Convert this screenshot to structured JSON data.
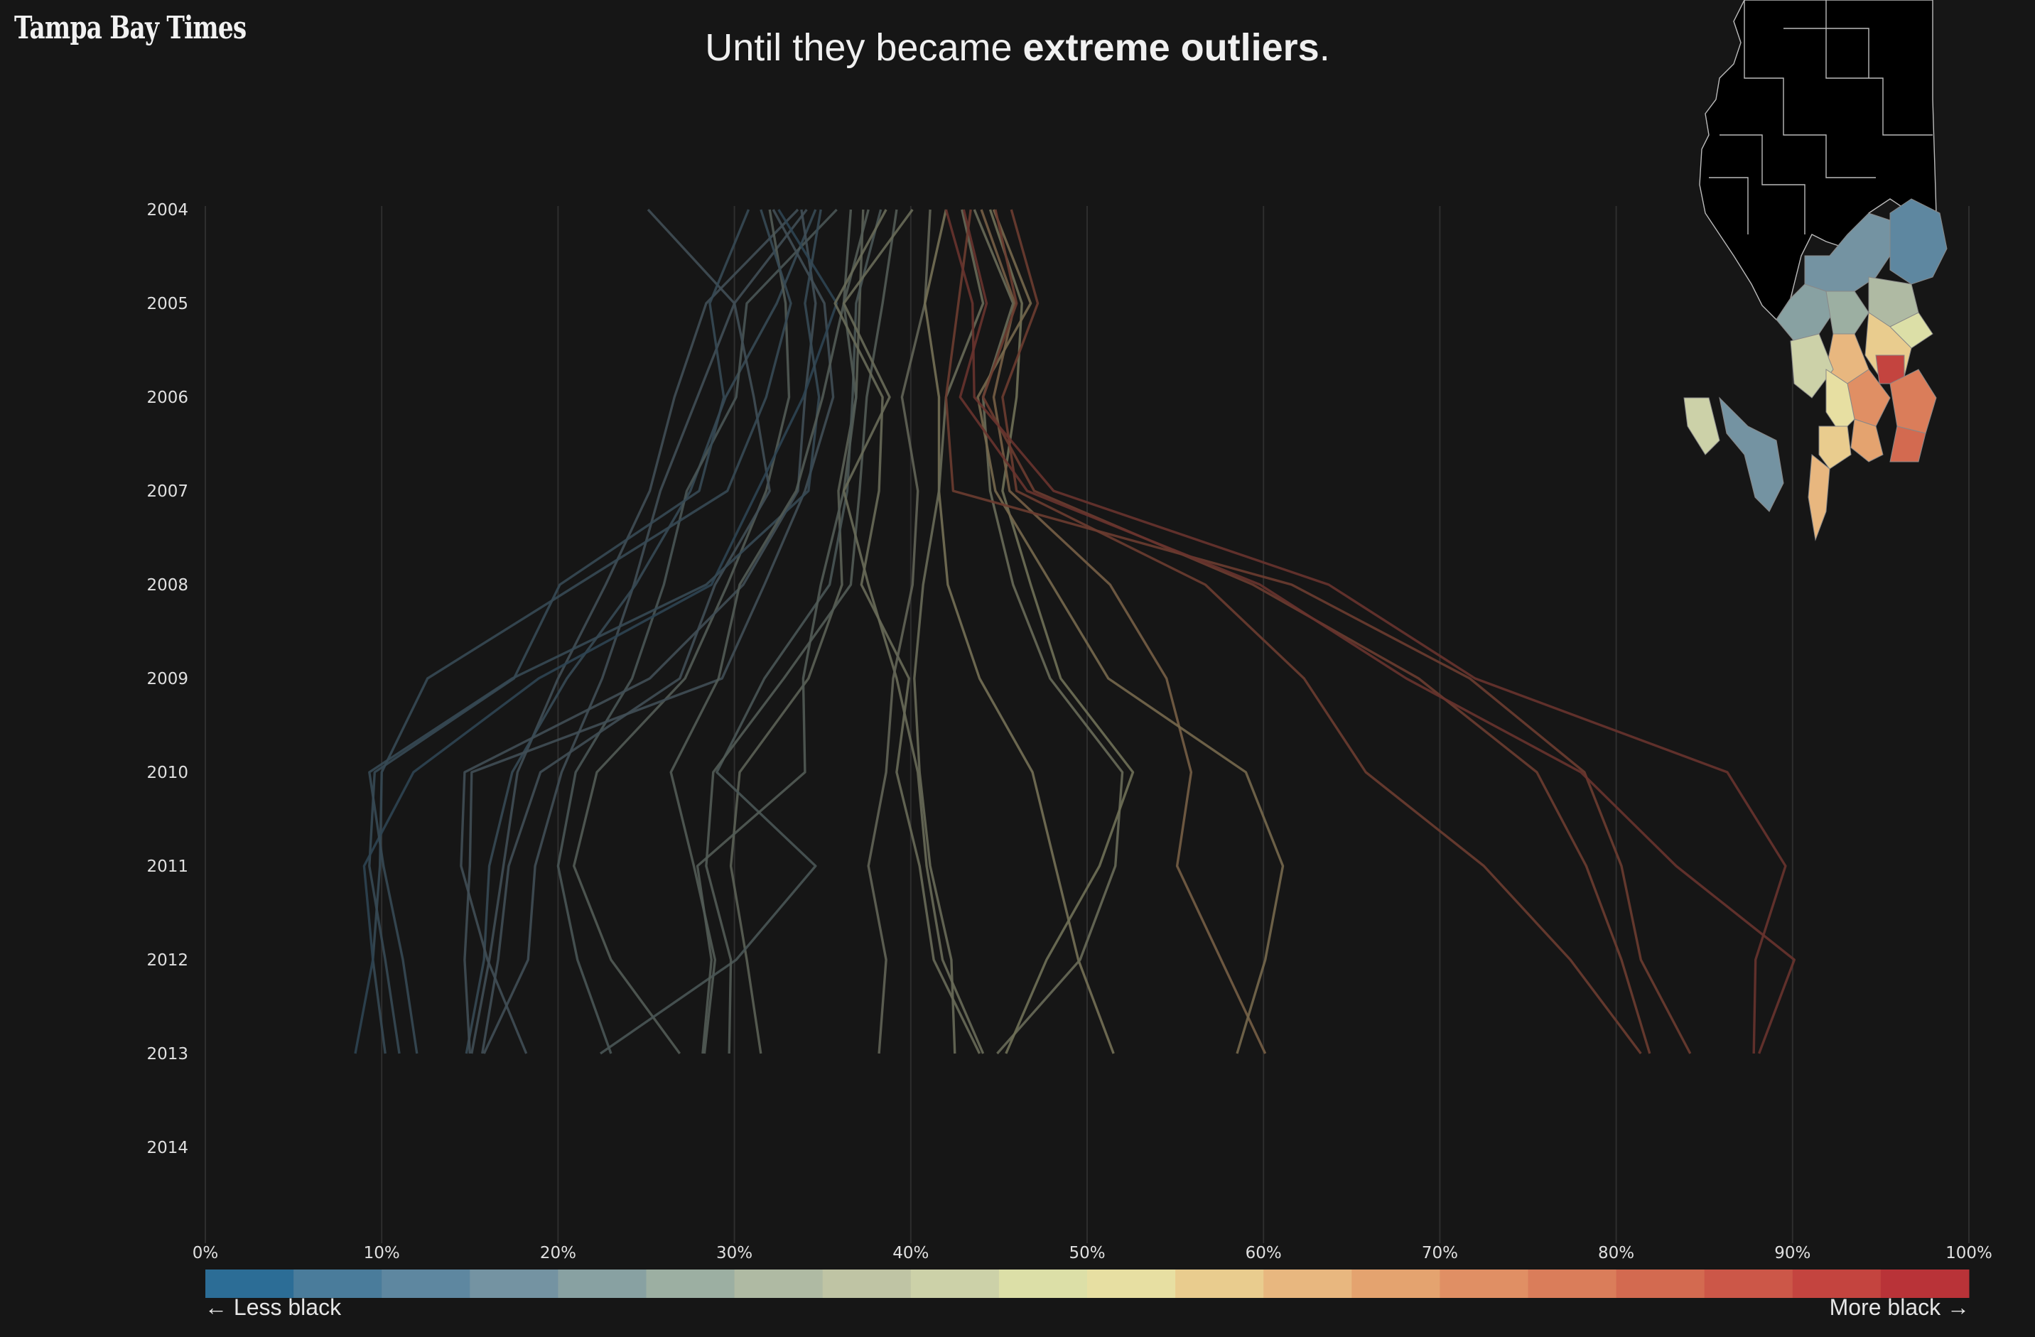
{
  "brand": {
    "name": "Tampa Bay Times"
  },
  "headline": {
    "prefix": "Until they became ",
    "bold": "extreme outliers",
    "suffix": "."
  },
  "legend": {
    "left_label": "← Less black",
    "right_label": "More black →"
  },
  "colors": {
    "background": "#161616",
    "scale": [
      "#2c6d96",
      "#4a7c9b",
      "#5e87a0",
      "#7493a2",
      "#88a1a2",
      "#9cafa2",
      "#afbaa3",
      "#bfc4a4",
      "#ccd1a8",
      "#dcdfa7",
      "#e7dfa2",
      "#e9cc8e",
      "#e8b77f",
      "#e4a36f",
      "#e08f64",
      "#da7d5a",
      "#d36a50",
      "#cc5748",
      "#c4443f",
      "#b93338"
    ]
  },
  "chart_data": {
    "type": "line",
    "x_ticks": [
      "0%",
      "10%",
      "20%",
      "30%",
      "40%",
      "50%",
      "60%",
      "70%",
      "80%",
      "90%",
      "100%"
    ],
    "xlim": [
      0,
      100
    ],
    "y_ticks": [
      "2004",
      "2005",
      "2006",
      "2007",
      "2008",
      "2009",
      "2010",
      "2011",
      "2012",
      "2013",
      "2014"
    ],
    "years": [
      2004,
      2005,
      2006,
      2007,
      2008,
      2009,
      2010,
      2011,
      2012,
      2013
    ],
    "series": [
      {
        "values": [
          33.6,
          28.4,
          26.6,
          25.2,
          22.7,
          20.0,
          17.7,
          16.9,
          16.1,
          15.1
        ]
      },
      {
        "values": [
          34.1,
          30.0,
          27.9,
          25.8,
          24.3,
          22.5,
          20.2,
          18.7,
          18.3,
          15.8
        ]
      },
      {
        "values": [
          34.6,
          32.4,
          29.5,
          27.5,
          24.4,
          20.5,
          17.4,
          16.1,
          15.8,
          14.8
        ]
      },
      {
        "values": [
          35.8,
          30.7,
          30.1,
          27.3,
          26.0,
          24.2,
          21.0,
          20.0,
          21.1,
          23.0
        ]
      },
      {
        "values": [
          32.0,
          32.9,
          33.1,
          31.8,
          29.6,
          27.2,
          22.2,
          20.9,
          23.0,
          26.9
        ]
      },
      {
        "values": [
          33.8,
          34.6,
          34.0,
          33.6,
          30.5,
          25.2,
          14.7,
          14.5,
          16.0,
          18.2
        ]
      },
      {
        "values": [
          32.2,
          35.1,
          35.6,
          34.0,
          31.7,
          29.3,
          15.1,
          15.0,
          14.7,
          15.0
        ]
      },
      {
        "values": [
          25.1,
          30.0,
          31.1,
          32.0,
          28.9,
          26.9,
          19.0,
          17.2,
          16.6,
          15.7
        ]
      },
      {
        "values": [
          30.8,
          28.6,
          29.4,
          28.0,
          20.1,
          17.5,
          9.6,
          9.3,
          10.2,
          11.0
        ]
      },
      {
        "values": [
          31.5,
          33.2,
          31.8,
          29.6,
          21.1,
          12.6,
          10.0,
          9.9,
          9.5,
          10.2
        ]
      },
      {
        "values": [
          32.5,
          35.8,
          33.9,
          31.3,
          28.7,
          18.9,
          11.8,
          9.0,
          9.5,
          8.5
        ]
      },
      {
        "values": [
          34.9,
          34.0,
          34.8,
          34.2,
          28.4,
          17.4,
          9.3,
          10.1,
          11.2,
          12.0
        ]
      },
      {
        "values": [
          36.6,
          36.2,
          35.0,
          33.5,
          30.3,
          29.1,
          26.4,
          27.7,
          28.9,
          28.3
        ]
      },
      {
        "values": [
          37.3,
          37.1,
          36.9,
          35.9,
          36.1,
          34.2,
          30.3,
          29.8,
          30.7,
          31.5
        ]
      },
      {
        "values": [
          38.3,
          36.9,
          36.7,
          36.4,
          35.4,
          31.7,
          29.0,
          34.6,
          30.1,
          22.4
        ]
      },
      {
        "values": [
          39.2,
          38.4,
          37.5,
          37.1,
          36.6,
          32.8,
          28.8,
          28.4,
          29.8,
          29.7
        ]
      },
      {
        "values": [
          37.6,
          36.2,
          36.9,
          36.2,
          34.9,
          33.9,
          34.0,
          27.9,
          28.7,
          28.2
        ]
      },
      {
        "values": [
          38.6,
          35.7,
          38.4,
          38.2,
          37.2,
          39.9,
          39.2,
          40.5,
          41.3,
          43.9
        ]
      },
      {
        "values": [
          40.1,
          36.2,
          38.8,
          36.2,
          37.6,
          39.2,
          40.4,
          40.9,
          41.8,
          44.1
        ]
      },
      {
        "values": [
          41.1,
          40.8,
          39.5,
          40.4,
          40.1,
          39.0,
          38.6,
          37.6,
          38.6,
          38.2
        ]
      },
      {
        "values": [
          42.0,
          40.8,
          41.6,
          41.6,
          42.1,
          43.9,
          46.9,
          48.2,
          49.5,
          51.5
        ]
      },
      {
        "values": [
          42.9,
          44.1,
          42.0,
          41.6,
          40.7,
          40.2,
          40.5,
          41.1,
          42.3,
          42.5
        ]
      },
      {
        "values": [
          43.6,
          45.8,
          44.1,
          44.5,
          45.8,
          47.9,
          52.0,
          51.6,
          49.6,
          44.9
        ]
      },
      {
        "values": [
          44.5,
          46.3,
          46.0,
          45.2,
          46.8,
          48.5,
          52.6,
          50.7,
          47.7,
          45.4
        ]
      },
      {
        "values": [
          44.0,
          45.9,
          44.7,
          45.6,
          51.3,
          54.5,
          55.9,
          55.1,
          57.6,
          60.1
        ]
      },
      {
        "values": [
          44.7,
          46.8,
          43.8,
          44.8,
          48.0,
          51.2,
          59.0,
          61.1,
          60.1,
          58.5
        ]
      },
      {
        "values": [
          45.7,
          47.2,
          45.2,
          46.0,
          56.7,
          62.3,
          65.8,
          72.5,
          77.4,
          81.4
        ]
      },
      {
        "values": [
          44.8,
          46.0,
          44.1,
          47.0,
          59.4,
          68.8,
          75.5,
          78.3,
          80.3,
          81.9
        ]
      },
      {
        "values": [
          43.4,
          42.7,
          42.0,
          42.4,
          61.6,
          71.7,
          78.2,
          80.3,
          81.4,
          84.2
        ]
      },
      {
        "values": [
          42.0,
          43.5,
          43.6,
          48.1,
          63.7,
          72.0,
          86.3,
          89.6,
          87.9,
          87.8
        ]
      },
      {
        "values": [
          43.0,
          44.3,
          42.8,
          46.6,
          59.8,
          68.1,
          78.0,
          83.4,
          90.1,
          88.1
        ]
      }
    ]
  }
}
